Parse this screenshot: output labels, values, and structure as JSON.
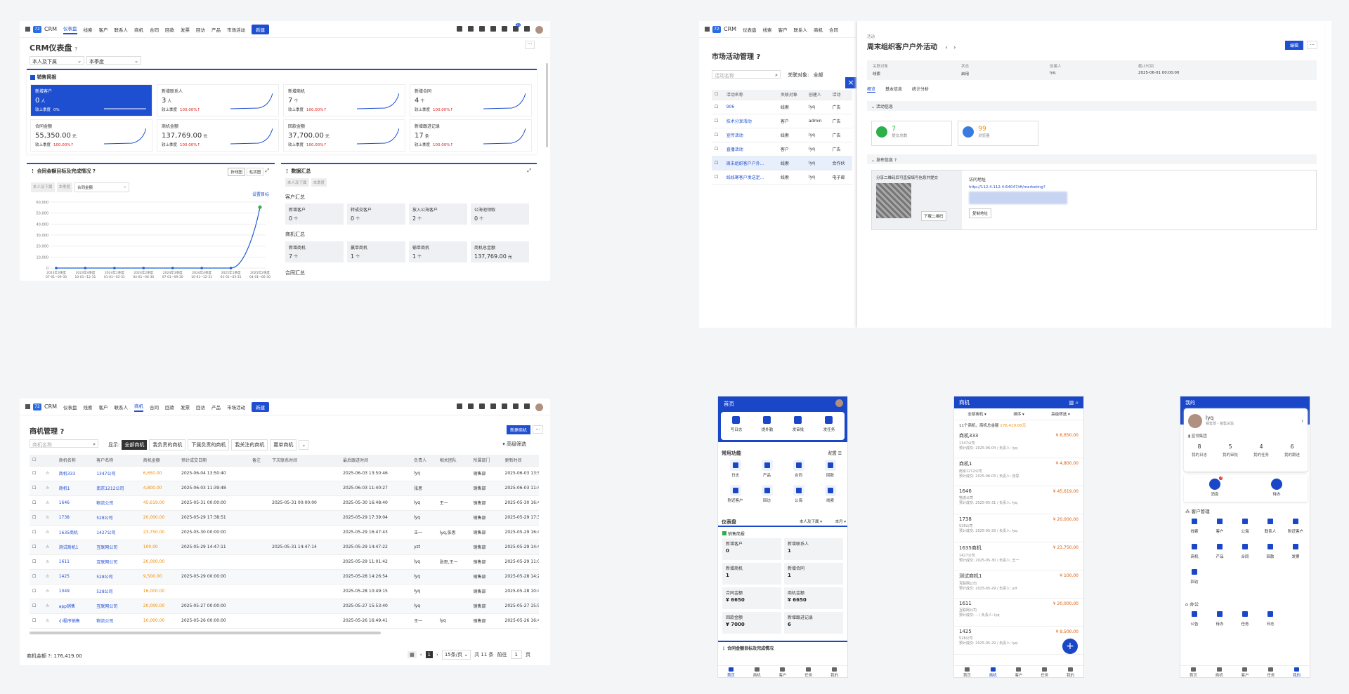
{
  "nav": {
    "app": "CRM",
    "items": [
      "仪表盘",
      "线索",
      "客户",
      "联系人",
      "商机",
      "合同",
      "回款",
      "发票",
      "回访",
      "产品",
      "市场活动"
    ],
    "new": "新建",
    "badge": "25"
  },
  "dash": {
    "title": "CRM仪表盘",
    "f1": "本人及下属",
    "f2": "本季度",
    "brief": "销售简报",
    "compare": "较上季度",
    "kpis": [
      {
        "label": "新增客户",
        "value": "0",
        "unit": "人",
        "pct": "0%"
      },
      {
        "label": "新增联系人",
        "value": "3",
        "unit": "人",
        "pct": "100.00%"
      },
      {
        "label": "新增商机",
        "value": "7",
        "unit": "个",
        "pct": "100.00%"
      },
      {
        "label": "新增合同",
        "value": "4",
        "unit": "个",
        "pct": "100.00%"
      },
      {
        "label": "合同金额",
        "value": "55,350.00",
        "unit": "元",
        "pct": "100.00%"
      },
      {
        "label": "商机金额",
        "value": "137,769.00",
        "unit": "元",
        "pct": "100.00%"
      },
      {
        "label": "回款金额",
        "value": "37,700.00",
        "unit": "元",
        "pct": "100.00%"
      },
      {
        "label": "新增跟进记录",
        "value": "17",
        "unit": "条",
        "pct": "100.00%"
      }
    ],
    "goal": {
      "title": "合同金额目标及完成情况",
      "t1": "折线图",
      "t2": "柱状图",
      "f1": "本人及下属",
      "f2": "本季度",
      "f3": "合同金额",
      "set": "设置目标"
    },
    "summary": {
      "title": "数据汇总",
      "f1": "本人及下属",
      "f2": "本季度",
      "cust": "客户汇总",
      "opp": "商机汇总",
      "contract": "合同汇总",
      "c": [
        {
          "l": "新增客户",
          "v": "0",
          "u": "个"
        },
        {
          "l": "转成交客户",
          "v": "0",
          "u": "个"
        },
        {
          "l": "放入公海客户",
          "v": "2",
          "u": "个"
        },
        {
          "l": "公海池领取",
          "v": "0",
          "u": "个"
        }
      ],
      "o": [
        {
          "l": "新增商机",
          "v": "7",
          "u": "个"
        },
        {
          "l": "赢单商机",
          "v": "1",
          "u": "个"
        },
        {
          "l": "输单商机",
          "v": "1",
          "u": "个"
        },
        {
          "l": "商机总金额",
          "v": "137,769.00",
          "u": "元"
        }
      ]
    }
  },
  "chart_data": {
    "type": "line",
    "categories": [
      "2023年3季度 07-01~09-30",
      "2023年4季度 10-01~12-31",
      "2024年1季度 01-01~03-31",
      "2024年2季度 04-01~06-30",
      "2024年3季度 07-01~09-30",
      "2024年4季度 10-01~12-31",
      "2025年1季度 01-01~03-31",
      "2025年2季度 04-01~06-30"
    ],
    "values": [
      0,
      0,
      0,
      0,
      0,
      0,
      0,
      55350
    ],
    "yticks": [
      "60,000",
      "50,000",
      "40,000",
      "30,000",
      "20,000",
      "10,000",
      "0"
    ],
    "ylim": [
      0,
      60000
    ],
    "color": "#1f5fd1",
    "last_color": "#2bb04a"
  },
  "market": {
    "title": "市场活动管理",
    "search": "活动名称",
    "assoc": "关联对象:",
    "assoc_val": "全部",
    "cols": [
      "活动名称",
      "关联对象",
      "创建人",
      "活动"
    ],
    "rows": [
      [
        "906",
        "线索",
        "lyq",
        "广告"
      ],
      [
        "技术分享活动",
        "客户",
        "admin",
        "广告"
      ],
      [
        "宣传活动",
        "线索",
        "lyq",
        "广告"
      ],
      [
        "直播活动",
        "客户",
        "lyq",
        "广告"
      ],
      [
        "周末组织客户户外...",
        "线索",
        "lyq",
        "合作伙"
      ],
      [
        "线线寒客户发送定...",
        "线索",
        "lyq",
        "电子邮"
      ]
    ]
  },
  "activity": {
    "crumb": "活动",
    "title": "周末组织客户户外活动",
    "edit": "编辑",
    "f": [
      [
        "关联对象",
        "线索"
      ],
      [
        "状态",
        "启用"
      ],
      [
        "创建人",
        "lyq"
      ],
      [
        "截止时间",
        "2025-06-01 00:00:00"
      ]
    ],
    "tabs": [
      "概览",
      "基本信息",
      "统计分析"
    ],
    "info": "活动信息",
    "submit": {
      "v": "7",
      "l": "提交总数"
    },
    "view": {
      "v": "99",
      "l": "浏览量"
    },
    "pub": "发布信息",
    "share": "分享二维码后可直接填写信息并提交",
    "dl": "下载二维码",
    "url_l": "访问地址",
    "url": "http://112.4.112.4:64047/#/marketing?",
    "copy": "复制地址"
  },
  "opps": {
    "title": "商机管理",
    "new": "新建商机",
    "search": "商机名称",
    "show": "显示:",
    "filters": [
      "全部商机",
      "我负责的商机",
      "下属负责的商机",
      "我关注的商机",
      "赢单商机"
    ],
    "adv": "高级筛选",
    "cols": [
      "商机名称",
      "客户名称",
      "商机金额",
      "预计成交日期",
      "备注",
      "下次联系时间",
      "最后跟进时间",
      "负责人",
      "相关团队",
      "所属部门",
      "更新时间"
    ],
    "rows": [
      [
        "商机333",
        "1347公司",
        "6,650.00",
        "2025-06-04 13:50:40",
        "",
        "",
        "2025-06-03 13:50:46",
        "lyq",
        "",
        "销售部",
        "2025-06-03 13:50"
      ],
      [
        "商机1",
        "南京1212公司",
        "4,800.00",
        "2025-06-03 11:39:48",
        "",
        "",
        "2025-06-03 11:40:27",
        "张思",
        "",
        "销售部",
        "2025-06-03 11:40"
      ],
      [
        "1646",
        "物流公司",
        "45,619.00",
        "2025-05-31 00:00:00",
        "",
        "2025-05-31 00:00:00",
        "2025-05-30 16:48:40",
        "lyq",
        "王一",
        "销售部",
        "2025-05-30 16:48"
      ],
      [
        "1738",
        "528公司",
        "20,000.00",
        "2025-05-29 17:38:51",
        "",
        "",
        "2025-05-29 17:39:04",
        "lyq",
        "",
        "销售部",
        "2025-05-29 17:39"
      ],
      [
        "1635商机",
        "1427公司",
        "23,750.00",
        "2025-05-30 00:00:00",
        "",
        "",
        "2025-05-29 16:47:43",
        "王一",
        "lyq,张思",
        "销售部",
        "2025-05-29 16:47"
      ],
      [
        "测试商机1",
        "互联网公司",
        "100.00",
        "2025-05-29 14:47:11",
        "",
        "2025-05-31 14:47:14",
        "2025-05-29 14:47:22",
        "yzt",
        "",
        "销售部",
        "2025-05-29 14:47"
      ],
      [
        "1611",
        "互联网公司",
        "20,000.00",
        "",
        "",
        "",
        "2025-05-29 11:01:42",
        "lyq",
        "张思,王一",
        "销售部",
        "2025-05-29 11:01"
      ],
      [
        "1425",
        "528公司",
        "9,500.00",
        "2025-05-29 00:00:00",
        "",
        "",
        "2025-05-28 14:26:54",
        "lyq",
        "",
        "销售部",
        "2025-05-28 14:26"
      ],
      [
        "1049",
        "528公司",
        "16,000.00",
        "",
        "",
        "",
        "2025-05-28 10:49:15",
        "lyq",
        "",
        "销售部",
        "2025-05-28 10:49"
      ],
      [
        "app销售",
        "互联网公司",
        "20,000.00",
        "2025-05-27 00:00:00",
        "",
        "",
        "2025-05-27 15:53:40",
        "lyq",
        "",
        "销售部",
        "2025-05-27 15:53"
      ],
      [
        "小程序销售",
        "物流公司",
        "10,000.00",
        "2025-05-26 00:00:00",
        "",
        "",
        "2025-05-26 16:49:41",
        "王一",
        "lyq",
        "销售部",
        "2025-05-26 16:49"
      ]
    ],
    "total_l": "商机金额",
    "total": "176,419.00",
    "page": "1",
    "per": "15条/页",
    "count": "共 11 条",
    "goto": "前往",
    "goto_v": "1",
    "page_u": "页"
  },
  "m1": {
    "title": "首页",
    "quick": [
      "写日志",
      "提外勤",
      "发审批",
      "发任务"
    ],
    "common": "常用功能",
    "config": "配置",
    "grid": [
      "日志",
      "产品",
      "合同",
      "回款",
      "附近客户",
      "回访",
      "公海",
      "线索"
    ],
    "dash": "仪表盘",
    "f1": "本人及下属",
    "f2": "本月",
    "brief": "销售简报",
    "tiles": [
      [
        "新增客户",
        "0"
      ],
      [
        "新增联系人",
        "1"
      ],
      [
        "新增商机",
        "1"
      ],
      [
        "新增合同",
        "1"
      ],
      [
        "合同金额",
        "¥ 6650"
      ],
      [
        "商机金额",
        "¥ 6650"
      ],
      [
        "回款金额",
        "¥ 7000"
      ],
      [
        "新增跟进记录",
        "6"
      ]
    ],
    "goal": "合同金额目标及完成情况",
    "tabs": [
      "首页",
      "商机",
      "客户",
      "任务",
      "我的"
    ]
  },
  "m2": {
    "title": "商机",
    "filters": [
      "全部商机",
      "排序",
      "高级筛选"
    ],
    "summary_a": "11个商机，商机总金额",
    "summary_b": "176,419.00元",
    "items": [
      [
        "商机333",
        "1347公司",
        "预计成交: 2025-06-04 / 负责人: lyq",
        "¥ 6,650.00"
      ],
      [
        "商机1",
        "南京1212公司",
        "预计成交: 2025-06-03 / 负责人: 张思",
        "¥ 4,800.00"
      ],
      [
        "1646",
        "物流公司",
        "预计成交: 2025-05-31 / 负责人: lyq",
        "¥ 45,619.00"
      ],
      [
        "1738",
        "528公司",
        "预计成交: 2025-05-29 / 负责人: lyq",
        "¥ 20,000.00"
      ],
      [
        "1635商机",
        "1427公司",
        "预计成交: 2025-05-30 / 负责人: 王一",
        "¥ 23,750.00"
      ],
      [
        "测试商机1",
        "互联网公司",
        "预计成交: 2025-05-29 / 负责人: yzt",
        "¥ 100.00"
      ],
      [
        "1611",
        "互联网公司",
        "预计成交: -- / 负责人: lyq",
        "¥ 20,000.00"
      ],
      [
        "1425",
        "528公司",
        "预计成交: 2025-05-29 / 负责人: lyq",
        "¥ 9,500.00"
      ]
    ],
    "tabs": [
      "首页",
      "商机",
      "客户",
      "任务",
      "我的"
    ]
  },
  "m3": {
    "title": "我的",
    "name": "lyq",
    "dept": "销售部 - 销售总监",
    "company": "蓝领集团",
    "stats": [
      [
        "8",
        "我的日志"
      ],
      [
        "5",
        "我的审批"
      ],
      [
        "4",
        "我的任务"
      ],
      [
        "6",
        "我的跟进"
      ]
    ],
    "msg": "消息",
    "todo": "待办",
    "msg_badge": "3",
    "cm": "客户管理",
    "cm_items": [
      "线索",
      "客户",
      "公海",
      "联系人",
      "附近客户",
      "商机",
      "产品",
      "合同",
      "回款",
      "发票",
      "回访"
    ],
    "office": "办公",
    "of_items": [
      "公告",
      "待办",
      "任务",
      "日志"
    ],
    "tabs": [
      "首页",
      "商机",
      "客户",
      "任务",
      "我的"
    ]
  }
}
